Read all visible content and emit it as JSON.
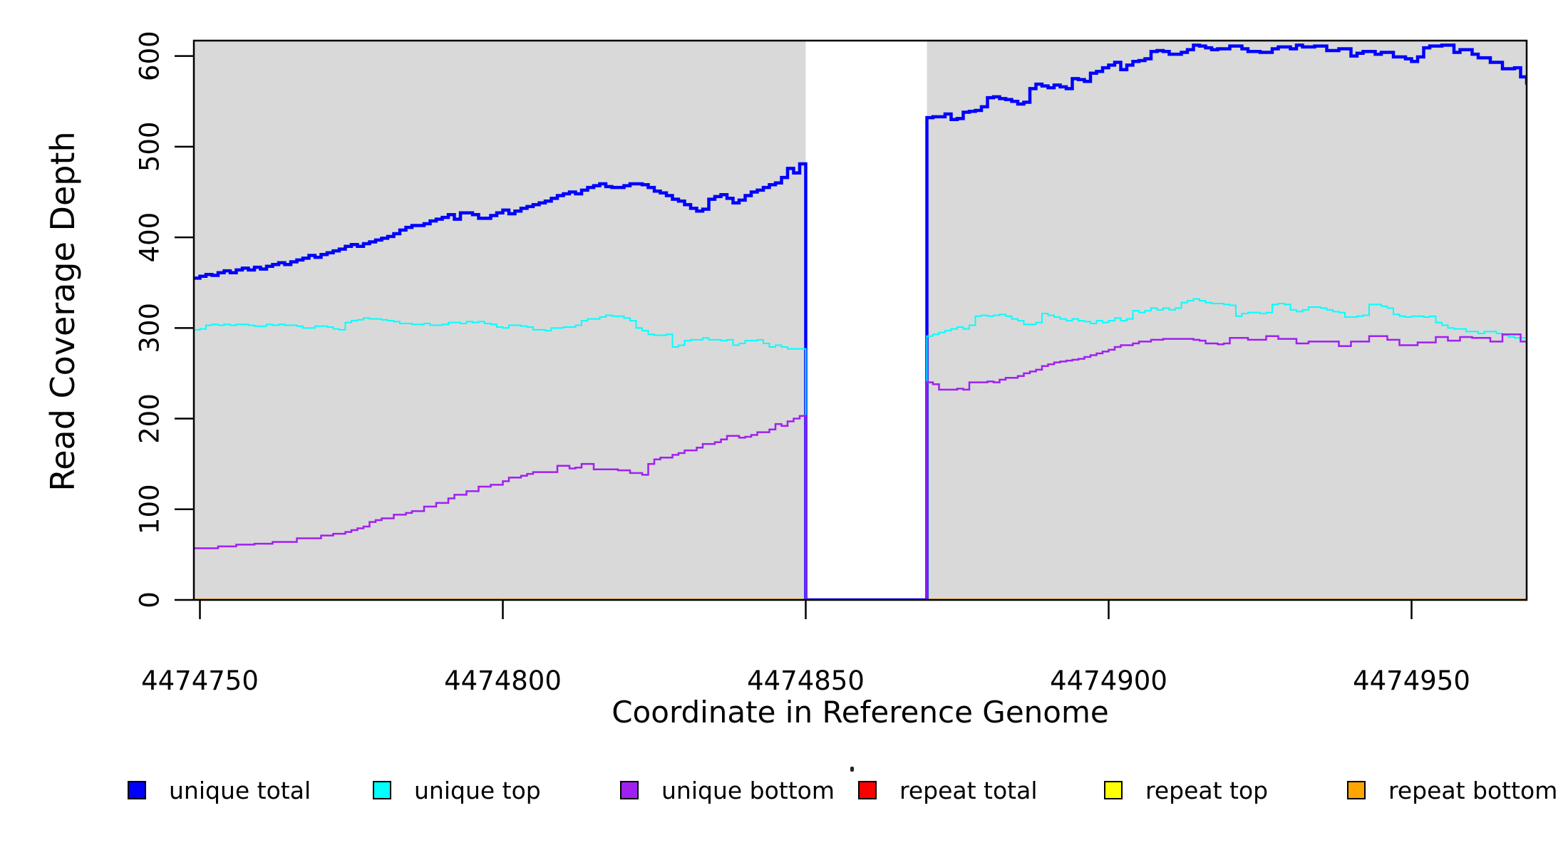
{
  "chart_data": {
    "type": "line",
    "subtype": "step",
    "title": "",
    "xlabel": "Coordinate in Reference Genome",
    "ylabel": "Read Coverage Depth",
    "x_range": [
      4474749,
      4474969
    ],
    "y_range": [
      0,
      617
    ],
    "x_ticks": [
      4474750,
      4474800,
      4474850,
      4474900,
      4474950
    ],
    "y_ticks": [
      0,
      100,
      200,
      300,
      400,
      500,
      600
    ],
    "grid": false,
    "plot_bg_color": "#d9d9d9",
    "page_bg_color": "#ffffff",
    "axis_color": "#000000",
    "gap_region": {
      "start": 4474850,
      "end": 4474869,
      "color": "#ffffff",
      "note": "zero-coverage window, all series drop to 0"
    },
    "legend_position": "bottom",
    "x_start": 4474749,
    "x_step": 1,
    "series": [
      {
        "name": "unique total",
        "color": "#0000ff",
        "width": 4.5,
        "values": [
          355,
          357,
          359,
          358,
          361,
          363,
          361,
          364,
          366,
          364,
          367,
          365,
          368,
          370,
          372,
          370,
          373,
          375,
          377,
          380,
          378,
          381,
          383,
          385,
          387,
          390,
          392,
          390,
          393,
          395,
          397,
          399,
          401,
          404,
          408,
          411,
          413,
          413,
          415,
          418,
          420,
          422,
          425,
          420,
          427,
          427,
          425,
          421,
          421,
          424,
          427,
          430,
          426,
          429,
          432,
          434,
          436,
          438,
          440,
          443,
          446,
          448,
          450,
          448,
          452,
          455,
          457,
          459,
          456,
          455,
          455,
          457,
          459,
          459,
          458,
          455,
          451,
          449,
          446,
          442,
          440,
          436,
          432,
          429,
          431,
          442,
          445,
          447,
          443,
          438,
          441,
          446,
          450,
          452,
          455,
          458,
          460,
          466,
          476,
          471,
          481,
          0,
          0,
          0,
          0,
          0,
          0,
          0,
          0,
          0,
          0,
          0,
          0,
          0,
          0,
          0,
          0,
          0,
          0,
          0,
          0,
          532,
          533,
          533,
          536,
          530,
          531,
          538,
          539,
          540,
          544,
          554,
          555,
          553,
          552,
          550,
          547,
          549,
          564,
          569,
          567,
          565,
          568,
          566,
          564,
          575,
          574,
          572,
          581,
          583,
          587,
          590,
          593,
          585,
          590,
          594,
          595,
          597,
          605,
          606,
          605,
          602,
          602,
          604,
          607,
          612,
          611,
          609,
          607,
          608,
          608,
          611,
          611,
          608,
          605,
          605,
          604,
          604,
          608,
          610,
          610,
          608,
          612,
          610,
          610,
          611,
          611,
          606,
          606,
          608,
          608,
          600,
          603,
          605,
          605,
          602,
          604,
          604,
          599,
          599,
          597,
          594,
          599,
          609,
          611,
          611,
          612,
          612,
          604,
          607,
          607,
          602,
          598,
          598,
          593,
          593,
          586,
          586,
          587,
          577,
          570
        ]
      },
      {
        "name": "unique top",
        "color": "#00ffff",
        "width": 2,
        "values": [
          298,
          299,
          303,
          304,
          303,
          304,
          303,
          304,
          304,
          303,
          302,
          302,
          304,
          303,
          304,
          303,
          303,
          302,
          300,
          300,
          302,
          302,
          301,
          299,
          298,
          306,
          308,
          309,
          311,
          310,
          310,
          309,
          308,
          307,
          305,
          305,
          304,
          304,
          305,
          303,
          303,
          304,
          306,
          306,
          305,
          307,
          306,
          307,
          305,
          304,
          301,
          300,
          303,
          303,
          302,
          301,
          298,
          298,
          297,
          300,
          300,
          301,
          301,
          303,
          308,
          310,
          310,
          312,
          314,
          313,
          313,
          311,
          308,
          300,
          297,
          293,
          292,
          292,
          293,
          279,
          281,
          286,
          287,
          287,
          289,
          287,
          287,
          286,
          287,
          281,
          283,
          286,
          286,
          287,
          283,
          279,
          281,
          279,
          277,
          277,
          277,
          0,
          0,
          0,
          0,
          0,
          0,
          0,
          0,
          0,
          0,
          0,
          0,
          0,
          0,
          0,
          0,
          0,
          0,
          0,
          0,
          291,
          293,
          295,
          297,
          299,
          301,
          299,
          303,
          313,
          314,
          313,
          314,
          315,
          313,
          310,
          308,
          304,
          304,
          306,
          316,
          314,
          312,
          310,
          308,
          310,
          308,
          307,
          305,
          308,
          306,
          308,
          311,
          308,
          310,
          319,
          317,
          319,
          322,
          320,
          322,
          320,
          322,
          328,
          330,
          332,
          330,
          328,
          327,
          327,
          326,
          325,
          313,
          316,
          317,
          317,
          316,
          317,
          326,
          327,
          326,
          320,
          318,
          320,
          323,
          323,
          322,
          320,
          318,
          317,
          312,
          312,
          313,
          314,
          326,
          326,
          324,
          322,
          315,
          313,
          312,
          313,
          313,
          312,
          313,
          306,
          303,
          300,
          299,
          299,
          296,
          296,
          294,
          296,
          296,
          294,
          292,
          290,
          289,
          289,
          289
        ]
      },
      {
        "name": "unique bottom",
        "color": "#a020f0",
        "width": 2.5,
        "values": [
          57,
          57,
          57,
          57,
          59,
          59,
          59,
          61,
          61,
          61,
          62,
          62,
          62,
          64,
          64,
          64,
          64,
          68,
          68,
          68,
          68,
          71,
          71,
          73,
          73,
          75,
          77,
          79,
          81,
          86,
          88,
          90,
          90,
          94,
          94,
          96,
          98,
          98,
          103,
          103,
          107,
          107,
          112,
          116,
          116,
          120,
          120,
          125,
          125,
          127,
          127,
          131,
          135,
          135,
          137,
          139,
          141,
          141,
          141,
          141,
          148,
          148,
          145,
          146,
          150,
          150,
          144,
          144,
          144,
          144,
          143,
          143,
          140,
          140,
          138,
          150,
          155,
          157,
          157,
          160,
          162,
          165,
          165,
          168,
          172,
          172,
          174,
          177,
          181,
          181,
          179,
          180,
          182,
          185,
          185,
          188,
          194,
          192,
          197,
          200,
          203,
          0,
          0,
          0,
          0,
          0,
          0,
          0,
          0,
          0,
          0,
          0,
          0,
          0,
          0,
          0,
          0,
          0,
          0,
          0,
          0,
          240,
          238,
          232,
          232,
          232,
          233,
          232,
          240,
          240,
          240,
          241,
          240,
          243,
          245,
          245,
          247,
          250,
          252,
          254,
          258,
          260,
          262,
          263,
          264,
          265,
          266,
          268,
          270,
          272,
          274,
          276,
          279,
          281,
          281,
          283,
          285,
          285,
          287,
          287,
          288,
          288,
          288,
          288,
          288,
          287,
          286,
          283,
          283,
          282,
          283,
          289,
          289,
          289,
          287,
          287,
          287,
          291,
          291,
          288,
          288,
          288,
          283,
          283,
          285,
          285,
          285,
          285,
          285,
          280,
          280,
          285,
          285,
          285,
          291,
          291,
          291,
          287,
          287,
          281,
          281,
          281,
          284,
          284,
          284,
          290,
          290,
          286,
          286,
          290,
          290,
          289,
          289,
          289,
          285,
          285,
          293,
          293,
          293,
          285,
          283
        ]
      },
      {
        "name": "repeat total",
        "color": "#ff0000",
        "width": 3.5,
        "constant_value": 0,
        "values": []
      },
      {
        "name": "repeat top",
        "color": "#ffff00",
        "width": 3.5,
        "constant_value": 0,
        "values": []
      },
      {
        "name": "repeat bottom",
        "color": "#ffa500",
        "width": 3.5,
        "constant_value": 0,
        "values": []
      }
    ],
    "legend_order": [
      "unique total",
      "unique top",
      "unique bottom",
      "repeat total",
      "repeat top",
      "repeat bottom"
    ]
  }
}
